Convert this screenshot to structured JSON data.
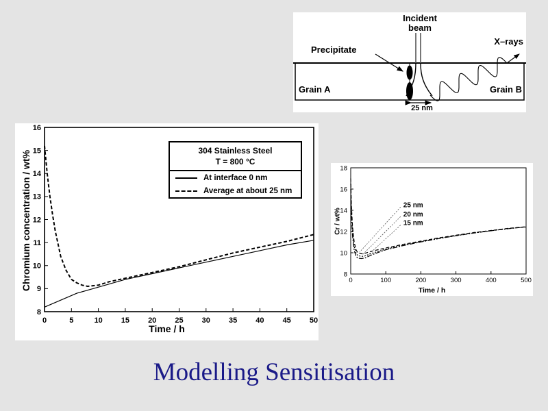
{
  "slide": {
    "title": "Modelling Sensitisation",
    "background_color": "#e4e4e4",
    "title_color": "#1a1a88"
  },
  "diagram": {
    "incident_beam_line1": "Incident",
    "incident_beam_line2": "beam",
    "precipitate_label": "Precipitate",
    "xrays_label": "X–rays",
    "grain_a_label": "Grain A",
    "grain_b_label": "Grain B",
    "scale_label": "25 nm"
  },
  "chart_data": [
    {
      "type": "line",
      "xlabel": "Time / h",
      "ylabel": "Chromium concentration / wt%",
      "xlim": [
        0,
        50
      ],
      "ylim": [
        8,
        16
      ],
      "xticks": [
        0,
        5,
        10,
        15,
        20,
        25,
        30,
        35,
        40,
        45,
        50
      ],
      "yticks": [
        8,
        9,
        10,
        11,
        12,
        13,
        14,
        15,
        16
      ],
      "grid": false,
      "legend": {
        "position": "top-center",
        "header": [
          "304 Stainless Steel",
          "T = 800 °C"
        ]
      },
      "series": [
        {
          "name": "At interface 0 nm",
          "style": "solid",
          "x": [
            0,
            3,
            6,
            9,
            12,
            15,
            20,
            25,
            30,
            35,
            40,
            45,
            50
          ],
          "y": [
            8.2,
            8.5,
            8.8,
            9.0,
            9.2,
            9.4,
            9.65,
            9.9,
            10.15,
            10.4,
            10.65,
            10.9,
            11.1
          ]
        },
        {
          "name": "Average at about 25 nm",
          "style": "dashed",
          "x": [
            0,
            0.5,
            1,
            1.5,
            2,
            3,
            4,
            5,
            6,
            7,
            8,
            10,
            12,
            15,
            20,
            25,
            30,
            35,
            40,
            45,
            50
          ],
          "y": [
            15.2,
            14.0,
            13.0,
            12.2,
            11.5,
            10.4,
            9.8,
            9.4,
            9.25,
            9.15,
            9.1,
            9.15,
            9.3,
            9.45,
            9.7,
            9.95,
            10.25,
            10.55,
            10.8,
            11.05,
            11.35
          ]
        }
      ]
    },
    {
      "type": "line",
      "xlabel": "Time / h",
      "ylabel": "Cr / wt%",
      "xlim": [
        0,
        500
      ],
      "ylim": [
        8,
        18
      ],
      "xticks": [
        0,
        100,
        200,
        300,
        400,
        500
      ],
      "yticks": [
        8,
        10,
        12,
        14,
        16,
        18
      ],
      "grid": false,
      "series": [
        {
          "name": "25 nm",
          "style": "dashed",
          "x": [
            0,
            2,
            5,
            10,
            15,
            20,
            30,
            40,
            60,
            80,
            100,
            150,
            200,
            250,
            300,
            350,
            400,
            450,
            500
          ],
          "y": [
            17.0,
            14.5,
            12.5,
            11.0,
            10.3,
            10.0,
            9.9,
            9.95,
            10.15,
            10.3,
            10.45,
            10.8,
            11.1,
            11.4,
            11.65,
            11.9,
            12.1,
            12.3,
            12.45
          ]
        },
        {
          "name": "20 nm",
          "style": "dotted",
          "x": [
            0,
            2,
            5,
            10,
            15,
            20,
            30,
            40,
            60,
            80,
            100,
            150,
            200,
            250,
            300,
            350,
            400,
            450,
            500
          ],
          "y": [
            16.5,
            14.0,
            12.0,
            10.6,
            10.0,
            9.75,
            9.65,
            9.7,
            9.95,
            10.15,
            10.35,
            10.72,
            11.05,
            11.35,
            11.62,
            11.87,
            12.08,
            12.28,
            12.44
          ]
        },
        {
          "name": "15 nm",
          "style": "dashdot",
          "x": [
            0,
            2,
            5,
            10,
            15,
            20,
            30,
            40,
            60,
            80,
            100,
            150,
            200,
            250,
            300,
            350,
            400,
            450,
            500
          ],
          "y": [
            16.0,
            13.5,
            11.6,
            10.2,
            9.7,
            9.5,
            9.45,
            9.5,
            9.8,
            10.05,
            10.28,
            10.68,
            11.02,
            11.33,
            11.6,
            11.85,
            12.07,
            12.27,
            12.43
          ]
        }
      ],
      "annotations": [
        {
          "label": "25 nm",
          "text_xy": [
            150,
            14.5
          ],
          "arrow_xy": [
            25,
            10.05
          ]
        },
        {
          "label": "20 nm",
          "text_xy": [
            150,
            13.6
          ],
          "arrow_xy": [
            33,
            9.8
          ]
        },
        {
          "label": "15 nm",
          "text_xy": [
            150,
            12.8
          ],
          "arrow_xy": [
            45,
            9.65
          ]
        }
      ]
    }
  ]
}
